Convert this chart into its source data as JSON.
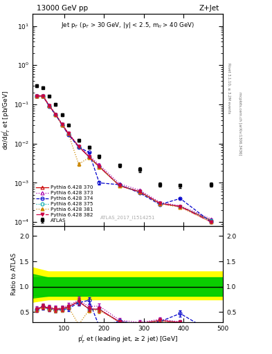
{
  "title_top": "13000 GeV pp",
  "title_right": "Z+Jet",
  "inner_title": "Jet p$_T$ (p$_T$ > 30 GeV, |y| < 2.5, m$_{ll}$ > 40 GeV)",
  "watermark": "ATLAS_2017_I1514251",
  "right_label1": "Rivet 3.1.10, ≥ 3.2M events",
  "right_label2": "mcplots.cern.ch [arXiv:1306.3436]",
  "xlabel": "p$_T^{j}$ et (leading jet, ≥ 2 jet) [GeV]",
  "ylabel_main": "dσ/dp$_T^{j}$ et [pb/GeV]",
  "ylabel_ratio": "Ratio to ATLAS",
  "atlas_x": [
    30,
    46,
    62,
    78,
    94,
    110,
    136,
    162,
    188,
    239,
    290,
    341,
    392,
    470
  ],
  "atlas_y": [
    0.3,
    0.27,
    0.16,
    0.1,
    0.055,
    0.03,
    0.012,
    0.0082,
    0.0047,
    0.0028,
    0.0022,
    0.0009,
    0.00085,
    0.0009
  ],
  "atlas_ey": [
    0.02,
    0.02,
    0.012,
    0.008,
    0.004,
    0.002,
    0.001,
    0.0006,
    0.0004,
    0.0003,
    0.0003,
    0.0001,
    0.0001,
    0.0001
  ],
  "py370_x": [
    30,
    46,
    62,
    78,
    94,
    110,
    136,
    162,
    188,
    239,
    290,
    341,
    392,
    470
  ],
  "py370_y": [
    0.165,
    0.165,
    0.092,
    0.056,
    0.031,
    0.018,
    0.0085,
    0.0046,
    0.0026,
    0.00085,
    0.0006,
    0.0003,
    0.00025,
    0.00011
  ],
  "py370_ey": [
    0.005,
    0.005,
    0.003,
    0.002,
    0.001,
    0.0006,
    0.0003,
    0.0002,
    0.0001,
    3e-05,
    2e-05,
    1e-05,
    1e-05,
    5e-06
  ],
  "py370_color": "#cc0000",
  "py370_label": "Pythia 6.428 370",
  "py373_x": [
    30,
    46,
    62,
    78,
    94,
    110,
    136,
    162,
    188,
    239,
    290,
    341,
    392,
    470
  ],
  "py373_y": [
    0.17,
    0.168,
    0.095,
    0.057,
    0.032,
    0.019,
    0.0088,
    0.005,
    0.0029,
    0.00095,
    0.00065,
    0.00032,
    0.00026,
    0.00012
  ],
  "py373_ey": [
    0.005,
    0.005,
    0.003,
    0.002,
    0.001,
    0.0006,
    0.0003,
    0.0002,
    0.0001,
    3e-05,
    2e-05,
    1e-05,
    1e-05,
    5e-06
  ],
  "py373_color": "#aa00aa",
  "py373_label": "Pythia 6.428 373",
  "py374_x": [
    30,
    46,
    62,
    78,
    94,
    110,
    136,
    162,
    188,
    239,
    290,
    341,
    392,
    470
  ],
  "py374_y": [
    0.162,
    0.16,
    0.09,
    0.054,
    0.03,
    0.017,
    0.0082,
    0.006,
    0.001,
    0.0009,
    0.00055,
    0.00028,
    0.0004,
    0.0001
  ],
  "py374_ey": [
    0.005,
    0.005,
    0.003,
    0.002,
    0.001,
    0.0006,
    0.0003,
    0.0002,
    0.0001,
    3e-05,
    2e-05,
    1e-05,
    1e-05,
    5e-06
  ],
  "py374_color": "#0000cc",
  "py374_label": "Pythia 6.428 374",
  "py375_x": [
    30,
    46,
    62,
    78,
    94,
    110,
    136,
    162,
    188,
    239,
    290,
    341,
    392,
    470
  ],
  "py375_y": [
    0.163,
    0.163,
    0.091,
    0.055,
    0.031,
    0.018,
    0.0085,
    0.0046,
    0.0026,
    0.00086,
    0.0006,
    0.0003,
    0.00025,
    0.00011
  ],
  "py375_ey": [
    0.005,
    0.005,
    0.003,
    0.002,
    0.001,
    0.0006,
    0.0003,
    0.0002,
    0.0001,
    3e-05,
    2e-05,
    1e-05,
    1e-05,
    5e-06
  ],
  "py375_color": "#00aaaa",
  "py375_label": "Pythia 6.428 375",
  "py381_x": [
    30,
    46,
    62,
    78,
    94,
    110,
    136,
    162,
    188,
    239,
    290,
    341,
    392,
    470
  ],
  "py381_y": [
    0.163,
    0.162,
    0.091,
    0.054,
    0.03,
    0.018,
    0.003,
    0.0044,
    0.0025,
    0.00084,
    0.00058,
    0.00029,
    0.00024,
    0.0001
  ],
  "py381_ey": [
    0.005,
    0.005,
    0.003,
    0.002,
    0.001,
    0.0006,
    0.0003,
    0.0002,
    0.0001,
    3e-05,
    2e-05,
    1e-05,
    1e-05,
    5e-06
  ],
  "py381_color": "#cc8800",
  "py381_label": "Pythia 6.428 381",
  "py382_x": [
    30,
    46,
    62,
    78,
    94,
    110,
    136,
    162,
    188,
    239,
    290,
    341,
    392,
    470
  ],
  "py382_y": [
    0.163,
    0.163,
    0.091,
    0.055,
    0.031,
    0.018,
    0.0085,
    0.0046,
    0.0026,
    0.00085,
    0.00059,
    0.0003,
    0.00025,
    0.0001
  ],
  "py382_ey": [
    0.005,
    0.005,
    0.003,
    0.002,
    0.001,
    0.0006,
    0.0003,
    0.0002,
    0.0001,
    3e-05,
    2e-05,
    1e-05,
    1e-05,
    5e-06
  ],
  "py382_color": "#cc0044",
  "py382_label": "Pythia 6.428 382",
  "xlim": [
    20,
    500
  ],
  "ylim_main": [
    8e-05,
    20
  ],
  "ylim_ratio": [
    0.3,
    2.2
  ],
  "ratio_yticks": [
    0.5,
    1.0,
    1.5,
    2.0
  ]
}
